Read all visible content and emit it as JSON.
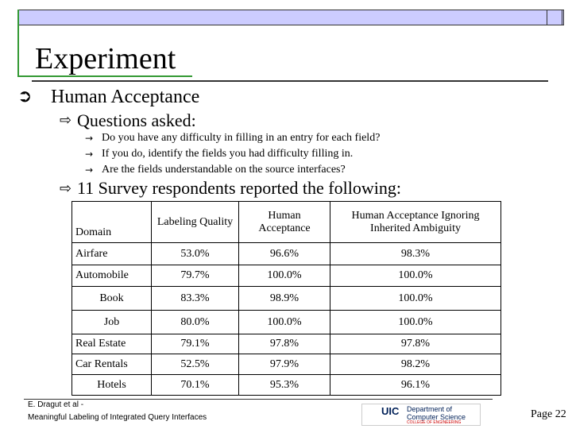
{
  "title": "Experiment",
  "bullet": "Human Acceptance",
  "questions": {
    "heading": "Questions asked:",
    "items": [
      "Do you have any difficulty in filling in an entry for each field?",
      "If you do, identify the fields you had difficulty filling in.",
      "Are the fields understandable on the source interfaces?"
    ]
  },
  "survey": "11 Survey respondents reported the following:",
  "table": {
    "header": [
      "Domain",
      "Labeling Quality",
      "Human Acceptance",
      "Human Acceptance Ignoring Inherited Ambiguity"
    ],
    "rows": [
      [
        "Airfare",
        "53.0%",
        "96.6%",
        "98.3%"
      ],
      [
        "Automobile",
        "79.7%",
        "100.0%",
        "100.0%"
      ],
      [
        "Book",
        "83.3%",
        "98.9%",
        "100.0%"
      ],
      [
        "Job",
        "80.0%",
        "100.0%",
        "100.0%"
      ],
      [
        "Real Estate",
        "79.1%",
        "97.8%",
        "97.8%"
      ],
      [
        "Car Rentals",
        "52.5%",
        "97.9%",
        "98.2%"
      ],
      [
        "Hotels",
        "70.1%",
        "95.3%",
        "96.1%"
      ]
    ]
  },
  "footer": {
    "authors": "E. Dragut et al -",
    "paper": "Meaningful Labeling of Integrated Query Interfaces",
    "page": "Page 22"
  },
  "logo": {
    "short": "UIC",
    "dept": "Department of Computer Science",
    "college": "COLLEGE OF ENGINEERING"
  }
}
